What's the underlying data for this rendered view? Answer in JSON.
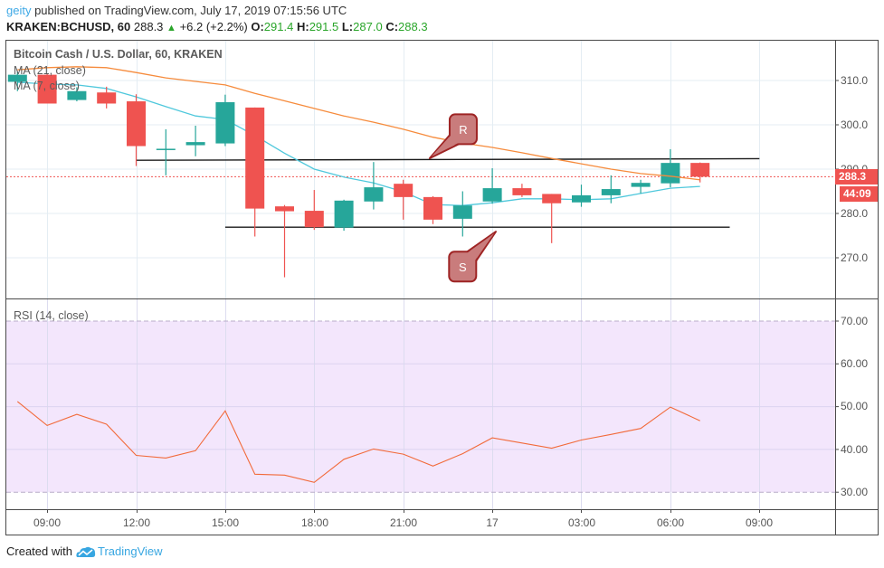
{
  "header": {
    "author": "geity",
    "published_text": " published on TradingView.com, July 17, 2019 07:15:56 UTC",
    "symbol": "KRAKEN:BCHUSD, 60",
    "last_price": "288.3",
    "change_arrow": "▲",
    "change": "+6.2 (+2.2%)",
    "ohlc": [
      {
        "label": "O:",
        "value": "291.4"
      },
      {
        "label": "H:",
        "value": "291.5"
      },
      {
        "label": "L:",
        "value": "287.0"
      },
      {
        "label": "C:",
        "value": "288.3"
      }
    ]
  },
  "main_pane": {
    "title": "Bitcoin Cash / U.S. Dollar, 60, KRAKEN",
    "legend": [
      "MA (21, close)",
      "MA (7, close)"
    ],
    "price_axis_ticks": [
      "310.0",
      "300.0",
      "290.0",
      "280.0",
      "270.0"
    ],
    "last_price_label": "288.3",
    "countdown_label": "44:09"
  },
  "rsi_pane": {
    "title": "RSI (14, close)",
    "axis_ticks": [
      "70.00",
      "60.00",
      "50.00",
      "40.00",
      "30.00"
    ]
  },
  "time_axis": {
    "ticks": [
      "09:00",
      "12:00",
      "15:00",
      "18:00",
      "21:00",
      "17",
      "03:00",
      "06:00",
      "09:00"
    ]
  },
  "footer": {
    "created_with": "Created with",
    "brand": "TradingView",
    "logo_icon": "tradingview-cloud-icon"
  },
  "colors": {
    "up": "#26a69a",
    "down": "#ef5350",
    "ma21": "#f68b3c",
    "ma7": "#4fc8dc",
    "rsi_line": "#f26a3a",
    "rsi_band": "#f3e6fc",
    "grid": "#e4edf3",
    "last_price": "#ef5350",
    "callout_fill": "#c97c7c",
    "callout_stroke": "#9e2424",
    "trend_line": "#1a1a1a",
    "author": "#3fa9e6",
    "change_positive": "#2aa52a",
    "brand": "#37a6e1"
  },
  "chart_data": {
    "type": "candlestick",
    "title": "Bitcoin Cash / U.S. Dollar, 60, KRAKEN",
    "symbol": "KRAKEN:BCHUSD",
    "interval": "60",
    "x": [
      "08:00",
      "09:00",
      "10:00",
      "11:00",
      "12:00",
      "13:00",
      "14:00",
      "15:00",
      "16:00",
      "17:00",
      "18:00",
      "19:00",
      "20:00",
      "21:00",
      "22:00",
      "23:00",
      "17 00:00",
      "01:00",
      "02:00",
      "03:00",
      "04:00",
      "05:00",
      "06:00",
      "07:00"
    ],
    "candles": [
      {
        "o": 309.7,
        "h": 312.0,
        "l": 307.6,
        "c": 311.3
      },
      {
        "o": 311.3,
        "h": 311.5,
        "l": 304.8,
        "c": 304.8
      },
      {
        "o": 305.6,
        "h": 308.5,
        "l": 305.3,
        "c": 307.6
      },
      {
        "o": 307.3,
        "h": 308.6,
        "l": 303.7,
        "c": 304.8
      },
      {
        "o": 305.3,
        "h": 306.9,
        "l": 290.7,
        "c": 295.2
      },
      {
        "o": 294.3,
        "h": 299.0,
        "l": 288.6,
        "c": 294.6
      },
      {
        "o": 295.4,
        "h": 299.8,
        "l": 292.9,
        "c": 296.1
      },
      {
        "o": 295.8,
        "h": 306.8,
        "l": 295.2,
        "c": 305.1
      },
      {
        "o": 303.9,
        "h": 303.9,
        "l": 274.8,
        "c": 281.1
      },
      {
        "o": 281.6,
        "h": 281.9,
        "l": 265.6,
        "c": 280.5
      },
      {
        "o": 280.6,
        "h": 285.3,
        "l": 276.3,
        "c": 276.9
      },
      {
        "o": 276.8,
        "h": 283.1,
        "l": 276.1,
        "c": 282.9
      },
      {
        "o": 282.7,
        "h": 291.6,
        "l": 280.9,
        "c": 285.9
      },
      {
        "o": 286.7,
        "h": 287.6,
        "l": 278.6,
        "c": 283.7
      },
      {
        "o": 283.7,
        "h": 283.9,
        "l": 277.6,
        "c": 278.6
      },
      {
        "o": 278.8,
        "h": 285.0,
        "l": 274.8,
        "c": 281.8
      },
      {
        "o": 282.7,
        "h": 290.2,
        "l": 282.2,
        "c": 285.7
      },
      {
        "o": 285.7,
        "h": 286.7,
        "l": 283.7,
        "c": 284.1
      },
      {
        "o": 284.4,
        "h": 284.4,
        "l": 273.3,
        "c": 282.3
      },
      {
        "o": 282.5,
        "h": 286.5,
        "l": 281.5,
        "c": 284.1
      },
      {
        "o": 284.1,
        "h": 288.6,
        "l": 282.3,
        "c": 285.5
      },
      {
        "o": 286.0,
        "h": 287.6,
        "l": 284.5,
        "c": 286.9
      },
      {
        "o": 286.8,
        "h": 294.5,
        "l": 285.9,
        "c": 291.4
      },
      {
        "o": 291.4,
        "h": 291.5,
        "l": 287.0,
        "c": 288.3
      }
    ],
    "series": [
      {
        "name": "MA (21, close)",
        "key": "ma21",
        "values": [
          312.4,
          312.9,
          313.1,
          312.9,
          311.8,
          310.6,
          309.8,
          309.0,
          307.1,
          305.4,
          303.7,
          302.0,
          300.6,
          299.0,
          297.2,
          295.9,
          294.9,
          293.7,
          292.4,
          291.2,
          290.0,
          289.0,
          288.4,
          287.6
        ]
      },
      {
        "name": "MA (7, close)",
        "key": "ma7",
        "values": [
          309.6,
          309.2,
          309.0,
          308.2,
          306.3,
          304.1,
          302.0,
          301.2,
          297.6,
          293.6,
          290.0,
          288.2,
          286.9,
          284.9,
          282.0,
          281.8,
          282.4,
          283.3,
          283.3,
          283.1,
          283.3,
          284.5,
          285.7,
          286.1
        ]
      }
    ],
    "rsi": {
      "name": "RSI (14, close)",
      "values": [
        51.2,
        45.6,
        48.2,
        45.9,
        38.6,
        38.0,
        39.7,
        49.0,
        34.2,
        34.0,
        32.3,
        37.7,
        40.1,
        38.9,
        36.1,
        39.0,
        42.7,
        41.5,
        40.3,
        42.2,
        43.5,
        44.9,
        49.9,
        46.7
      ],
      "upper": 70,
      "lower": 30,
      "ticks": [
        70,
        60,
        50,
        40,
        30
      ],
      "ylim": [
        26.0,
        75.1
      ]
    },
    "ylim": [
      260.8,
      319.2
    ],
    "price_ticks": [
      310,
      300,
      290,
      280,
      270
    ],
    "time_tick_indices": [
      1,
      4,
      7,
      10,
      13,
      16,
      19,
      22,
      25
    ],
    "last_price": 288.3,
    "lines": [
      {
        "name": "resistance",
        "from_index": 4,
        "to_index": 25,
        "from_price": 292.0,
        "to_price": 292.35
      },
      {
        "name": "support",
        "from_index": 7,
        "to_index": 24,
        "from_price": 276.9,
        "to_price": 276.9
      }
    ],
    "callouts": [
      {
        "label": "R",
        "box_index": 15.02,
        "box_price": 299.0,
        "tip_index": 13.89,
        "tip_price": 292.45
      },
      {
        "label": "S",
        "box_index": 15.0,
        "box_price": 268.0,
        "tip_index": 16.12,
        "tip_price": 275.9
      }
    ],
    "xlabel": "",
    "ylabel": ""
  }
}
